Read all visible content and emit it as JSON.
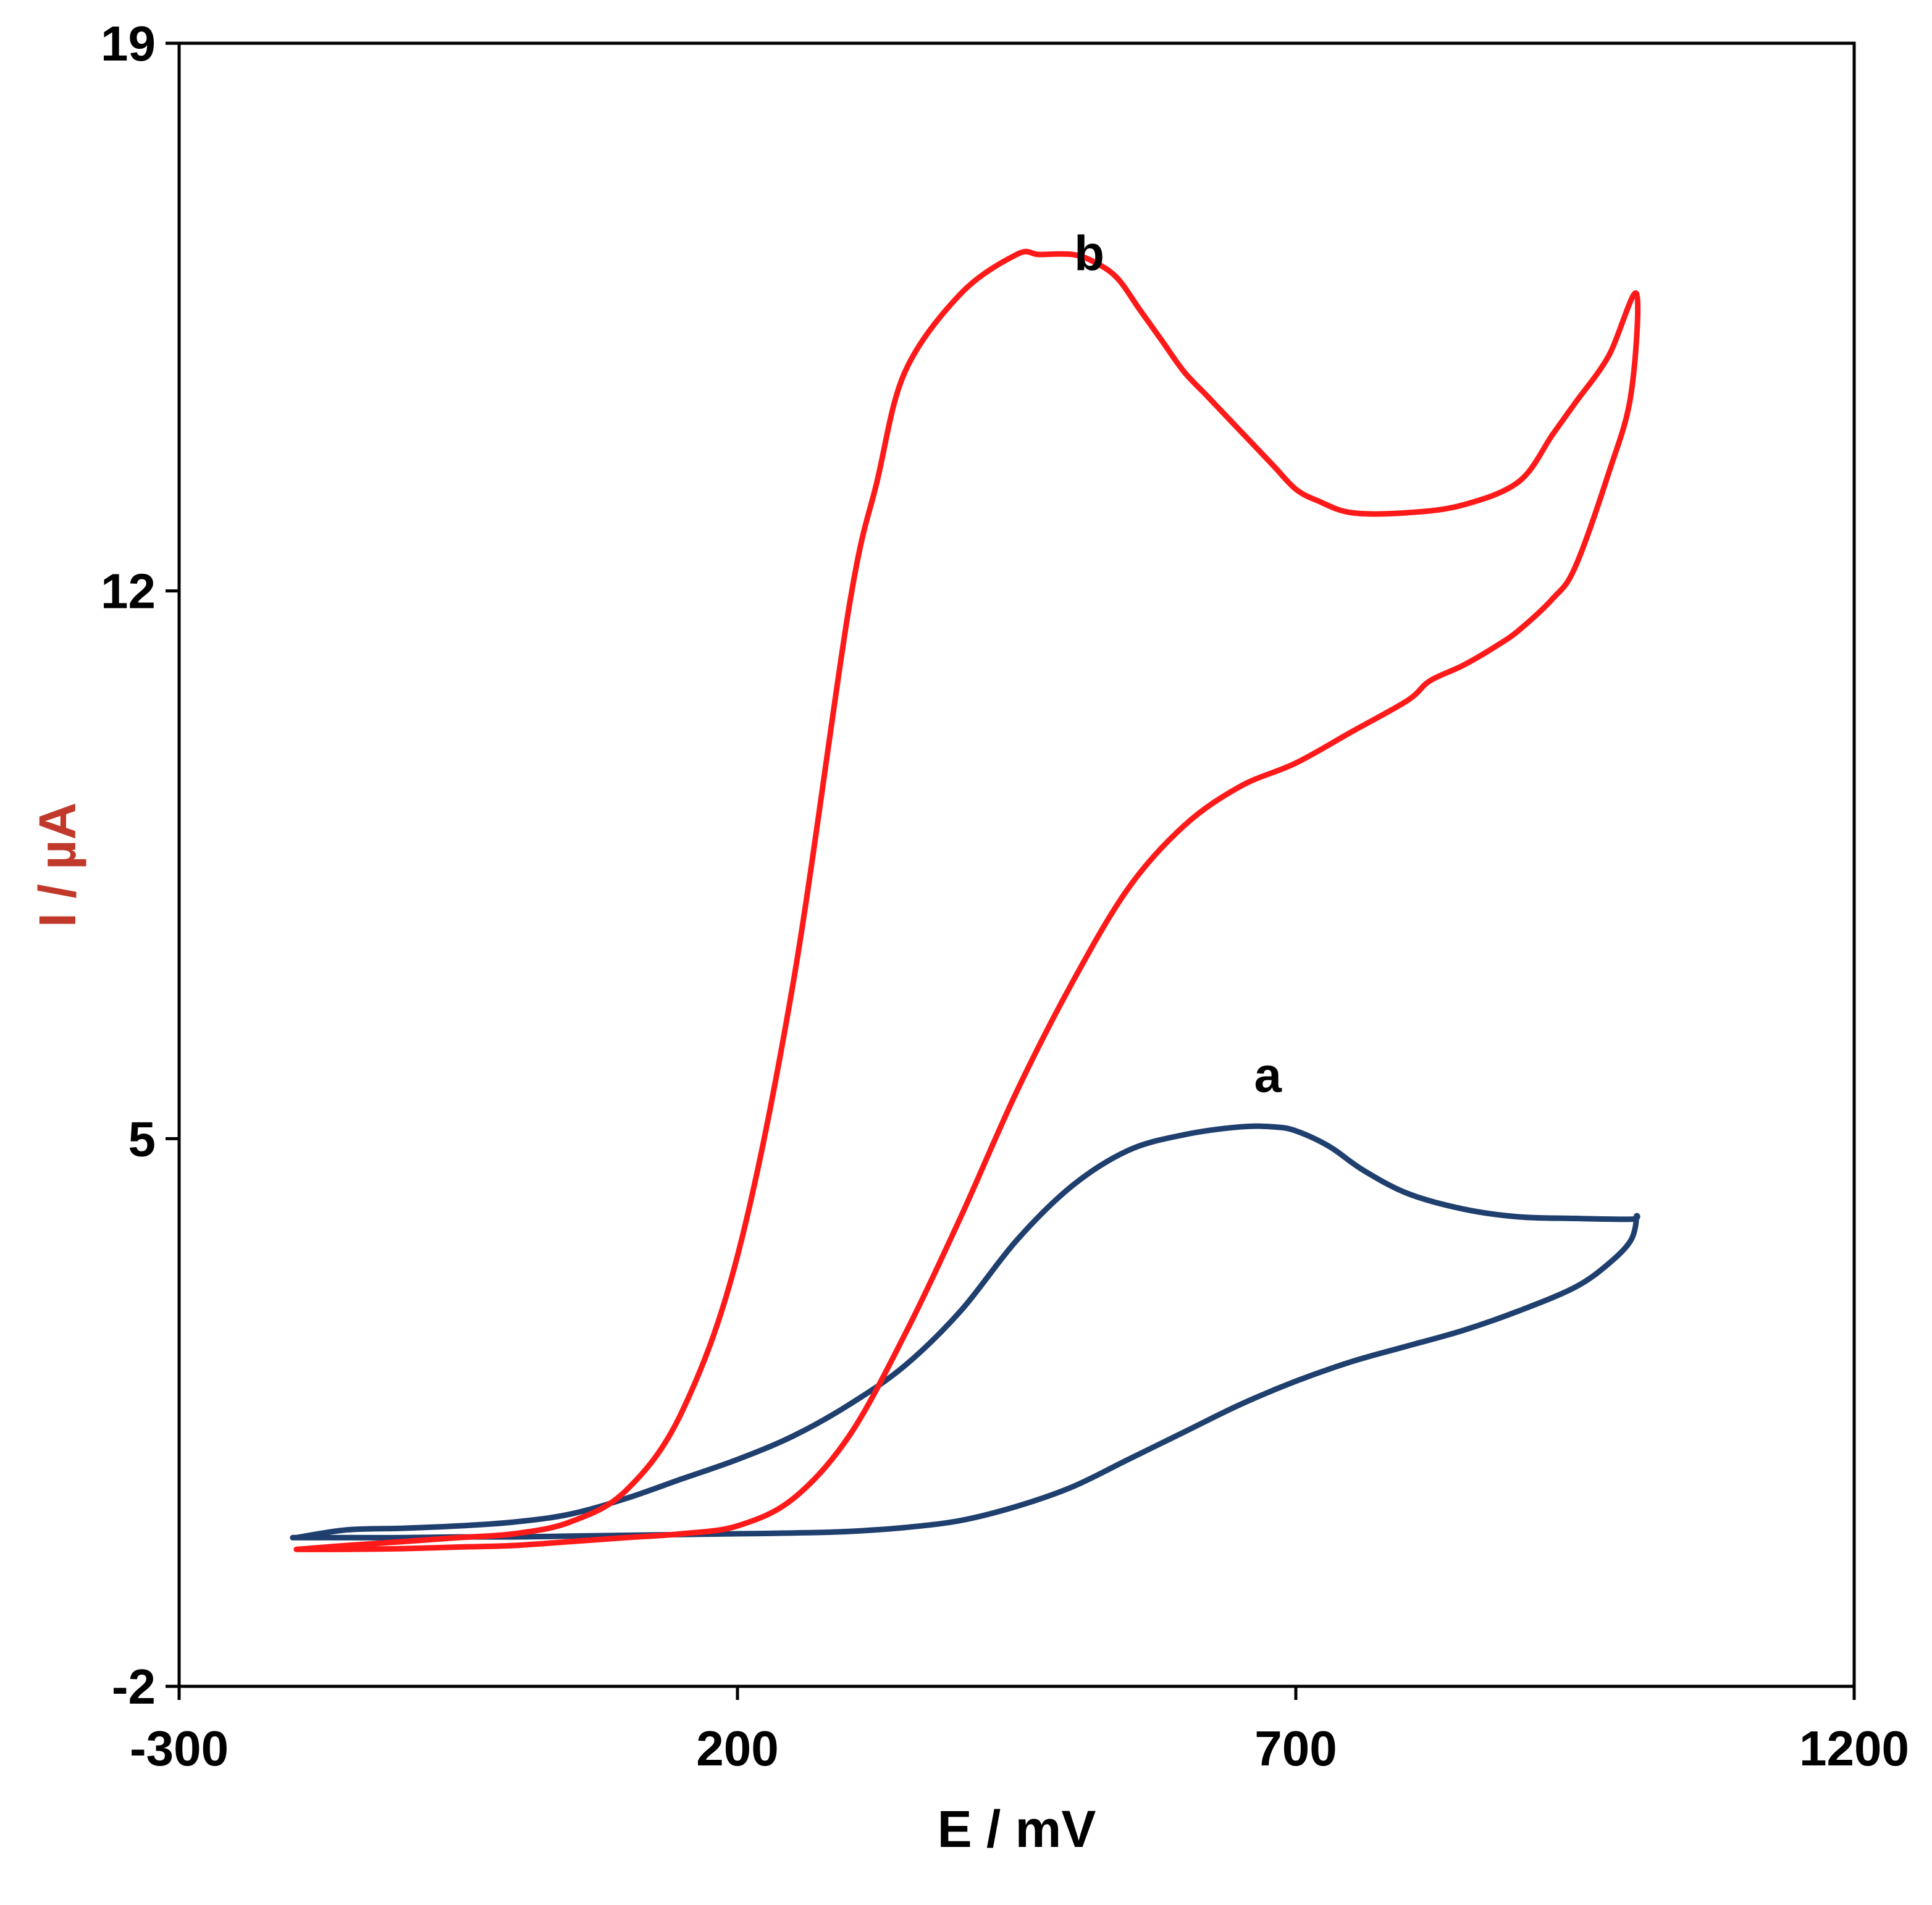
{
  "chart_data": {
    "type": "line",
    "title": "",
    "xlabel": "E / mV",
    "ylabel": "I / µA",
    "xlim": [
      -300,
      1200
    ],
    "ylim": [
      -2,
      19
    ],
    "xticks": [
      -300,
      200,
      700,
      1200
    ],
    "yticks": [
      -2,
      5,
      12,
      19
    ],
    "xtick_labels": [
      "-300",
      "200",
      "700",
      "1200"
    ],
    "ytick_labels": [
      "-2",
      "5",
      "12",
      "19"
    ],
    "grid": false,
    "colors": {
      "axis": "#000000",
      "ylabel": "#c0392b",
      "xlabel": "#000000"
    },
    "series": [
      {
        "name": "a",
        "color": "#1f3f6e",
        "label_at": [
          675,
          5.6
        ],
        "x": [
          -195,
          -150,
          -100,
          -50,
          0,
          50,
          100,
          150,
          200,
          250,
          300,
          350,
          400,
          450,
          500,
          550,
          600,
          650,
          680,
          700,
          730,
          760,
          800,
          850,
          900,
          950,
          1000,
          1005,
          1000,
          980,
          950,
          900,
          850,
          800,
          750,
          700,
          650,
          600,
          550,
          500,
          450,
          400,
          350,
          300,
          250,
          200,
          150,
          100,
          50,
          0,
          -50,
          -100,
          -150,
          -195,
          -195
        ],
        "y": [
          -0.1,
          0.0,
          0.02,
          0.05,
          0.1,
          0.2,
          0.4,
          0.65,
          0.9,
          1.2,
          1.6,
          2.1,
          2.8,
          3.7,
          4.4,
          4.85,
          5.05,
          5.15,
          5.15,
          5.1,
          4.9,
          4.6,
          4.3,
          4.1,
          4.0,
          3.98,
          3.97,
          4.0,
          3.7,
          3.4,
          3.1,
          2.8,
          2.55,
          2.35,
          2.15,
          1.9,
          1.6,
          1.25,
          0.9,
          0.55,
          0.3,
          0.12,
          0.03,
          -0.02,
          -0.04,
          -0.05,
          -0.06,
          -0.07,
          -0.08,
          -0.09,
          -0.09,
          -0.1,
          -0.1,
          -0.1,
          -0.1
        ]
      },
      {
        "name": "b",
        "color": "#ff1a1a",
        "label_at": [
          515,
          16.1
        ],
        "x": [
          -195,
          -150,
          -100,
          -50,
          0,
          50,
          100,
          150,
          200,
          250,
          300,
          325,
          350,
          400,
          450,
          470,
          500,
          520,
          540,
          560,
          580,
          600,
          620,
          640,
          660,
          680,
          700,
          720,
          750,
          800,
          850,
          900,
          930,
          950,
          980,
          1005,
          1000,
          980,
          950,
          930,
          900,
          880,
          850,
          820,
          800,
          750,
          700,
          650,
          600,
          550,
          500,
          450,
          400,
          350,
          300,
          250,
          200,
          150,
          100,
          50,
          0,
          -50,
          -100,
          -150,
          -195
        ],
        "y": [
          -0.25,
          -0.2,
          -0.15,
          -0.1,
          -0.05,
          0.1,
          0.5,
          1.5,
          3.5,
          7.0,
          11.8,
          13.4,
          14.8,
          15.8,
          16.3,
          16.3,
          16.3,
          16.2,
          16.0,
          15.6,
          15.2,
          14.8,
          14.5,
          14.2,
          13.9,
          13.6,
          13.3,
          13.15,
          13.0,
          13.0,
          13.1,
          13.4,
          14.0,
          14.4,
          15.0,
          15.8,
          14.5,
          13.5,
          12.3,
          11.9,
          11.5,
          11.3,
          11.05,
          10.85,
          10.6,
          10.2,
          9.8,
          9.5,
          9.0,
          8.2,
          7.0,
          5.6,
          4.0,
          2.5,
          1.2,
          0.4,
          0.05,
          -0.05,
          -0.1,
          -0.15,
          -0.2,
          -0.22,
          -0.24,
          -0.25,
          -0.25
        ]
      }
    ]
  }
}
